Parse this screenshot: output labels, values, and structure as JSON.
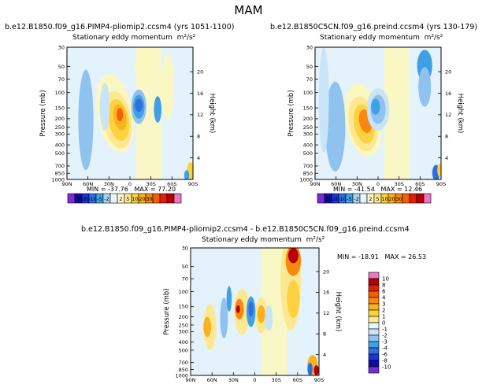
{
  "title": "MAM",
  "colors": {
    "neg": [
      "#7b2bd8",
      "#1010a0",
      "#1a34d8",
      "#2e6fe0",
      "#3fa0e6",
      "#8fc2ee",
      "#c8e4f6",
      "#e8f6fc"
    ],
    "pos": [
      "#fbf7c0",
      "#fde892",
      "#fdd140",
      "#fbb220",
      "#f98810",
      "#f26000",
      "#e02000",
      "#b80000",
      "#d81020",
      "#e878c0"
    ],
    "field_bg": "#e4f3fb"
  },
  "colorbar_small": {
    "labels": [
      "-30",
      "-20",
      "-10",
      "-5",
      "-2",
      "2",
      "5",
      "10",
      "20",
      "30"
    ],
    "colors": [
      "#7b2bd8",
      "#1010a0",
      "#1a34d8",
      "#2e6fe0",
      "#3fa0e6",
      "#a8d4f2",
      "#e8f6fc",
      "#fdf8c8",
      "#fde892",
      "#fdd140",
      "#fbb220",
      "#f98810",
      "#f26000",
      "#e02000",
      "#b80000",
      "#e878c0"
    ]
  },
  "colorbar_diff": {
    "labels": [
      "10",
      "8",
      "6",
      "4",
      "3",
      "2",
      "1",
      "0",
      "-1",
      "-2",
      "-3",
      "-4",
      "-6",
      "-8",
      "-10"
    ],
    "colors": [
      "#e878c0",
      "#b80000",
      "#e02000",
      "#f26000",
      "#f98810",
      "#fbb220",
      "#fdd140",
      "#fde892",
      "#e8f6fc",
      "#c8e4f6",
      "#8fc2ee",
      "#3fa0e6",
      "#2e6fe0",
      "#1a34d8",
      "#1010a0",
      "#7b2bd8"
    ]
  },
  "chart_data": [
    {
      "type": "heatmap",
      "title": "b.e12.B1850.f09_g16.PIMP4-pliomip2.ccsm4 (yrs 1051-1100)",
      "subtitle": "Stationary eddy momentum",
      "units": "m²/s²",
      "ylabel": "Pressure (mb)",
      "ylabel_right": "Height (km)",
      "x_ticks": [
        "90N",
        "60N",
        "30N",
        "0",
        "30S",
        "60S",
        "90S"
      ],
      "y_ticks": [
        "30",
        "50",
        "70",
        "100",
        "150",
        "200",
        "250",
        "300",
        "400",
        "500",
        "700",
        "850",
        "1000"
      ],
      "y_right_ticks": [
        "20",
        "16",
        "12",
        "8",
        "4"
      ],
      "min_label": "MIN =",
      "min": "-37.76",
      "max_label": "MAX =",
      "max": "77.20"
    },
    {
      "type": "heatmap",
      "title": "b.e12.B1850C5CN.f09_g16.preind.ccsm4 (yrs 130-179)",
      "subtitle": "Stationary eddy momentum",
      "units": "m²/s²",
      "ylabel": "Pressure (mb)",
      "ylabel_right": "Height (km)",
      "x_ticks": [
        "90N",
        "60N",
        "30N",
        "0",
        "30S",
        "60S",
        "90S"
      ],
      "y_ticks": [
        "30",
        "50",
        "70",
        "100",
        "150",
        "200",
        "250",
        "300",
        "400",
        "500",
        "700",
        "850",
        "1000"
      ],
      "y_right_ticks": [
        "20",
        "16",
        "12",
        "8",
        "4"
      ],
      "min_label": "MIN =",
      "min": "-41.54",
      "max_label": "MAX =",
      "max": "12.46"
    },
    {
      "type": "heatmap",
      "title": "b.e12.B1850.f09_g16.PIMP4-pliomip2.ccsm4 - b.e12.B1850C5CN.f09_g16.preind.ccsm4",
      "subtitle": "Stationary eddy momentum",
      "units": "m²/s²",
      "ylabel": "Pressure (mb)",
      "ylabel_right": "Height (km)",
      "x_ticks": [
        "90N",
        "60N",
        "30N",
        "0",
        "30S",
        "60S",
        "90S"
      ],
      "y_ticks": [
        "30",
        "50",
        "70",
        "100",
        "150",
        "200",
        "250",
        "300",
        "400",
        "500",
        "700",
        "850",
        "1000"
      ],
      "y_right_ticks": [
        "20",
        "16",
        "12",
        "8",
        "4"
      ],
      "min_label": "MIN =",
      "min": "-18.91",
      "max_label": "MAX =",
      "max": "26.53"
    }
  ]
}
